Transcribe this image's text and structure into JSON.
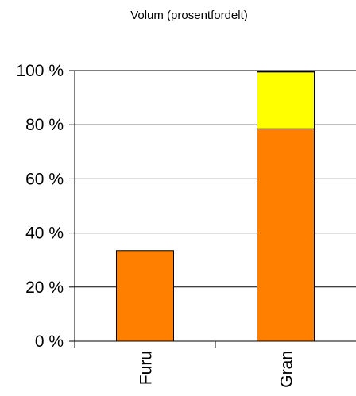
{
  "chart_data": {
    "type": "bar",
    "stacked": true,
    "title": "Volum (prosentfordelt)",
    "xlabel": "",
    "ylabel": "",
    "categories": [
      "Furu",
      "Gran"
    ],
    "ylim": [
      0,
      100
    ],
    "yticks": [
      0,
      20,
      40,
      60,
      80,
      100
    ],
    "ytick_labels": [
      "0 %",
      "20 %",
      "40 %",
      "60 %",
      "80 %",
      "100 %"
    ],
    "grid": true,
    "series": [
      {
        "values": [
          33.5,
          78.5
        ],
        "color": "#FF8000"
      },
      {
        "values": [
          0,
          21.0
        ],
        "color": "#FFFF00"
      },
      {
        "values": [
          0,
          0.5
        ],
        "color": "#000000"
      }
    ]
  }
}
